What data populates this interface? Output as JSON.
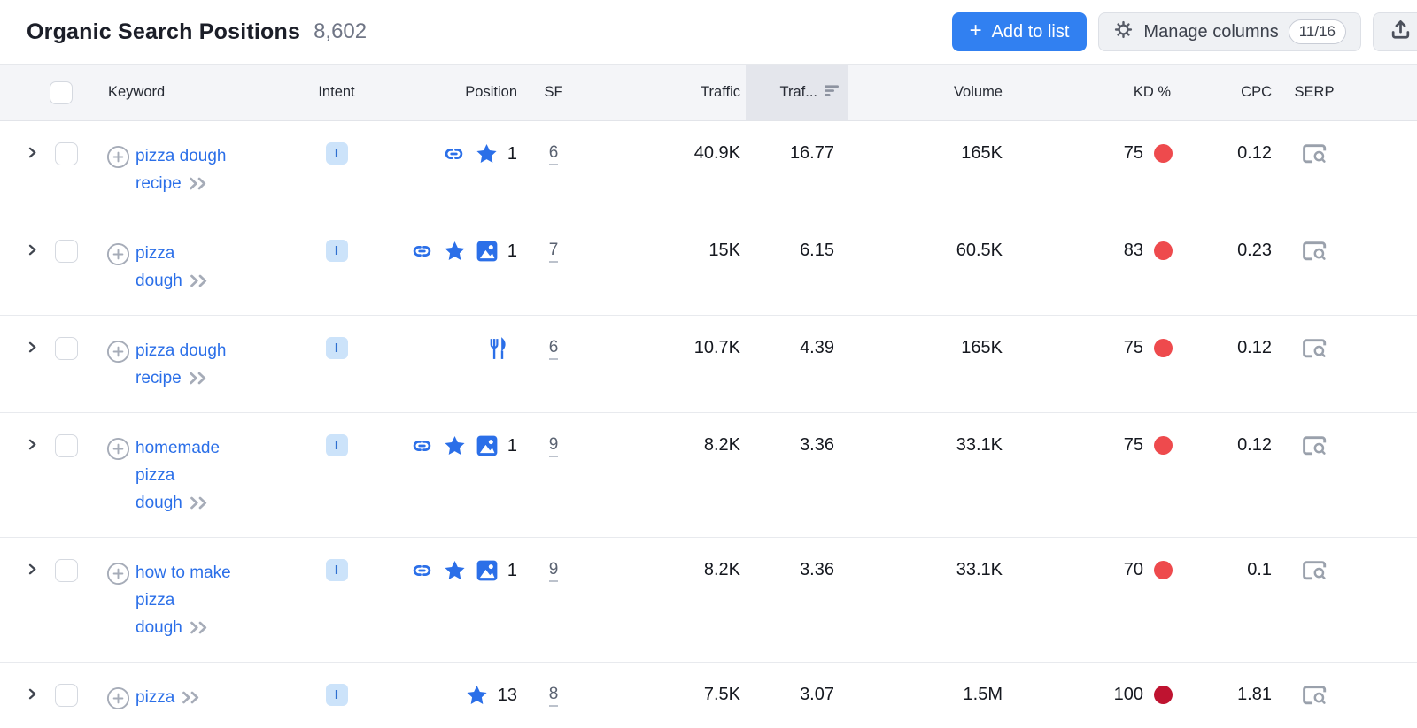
{
  "header": {
    "title": "Organic Search Positions",
    "count": "8,602",
    "add_to_list_label": "Add to list",
    "add_to_list_plus": "+",
    "manage_columns_label": "Manage columns",
    "manage_columns_badge": "11/16"
  },
  "colors": {
    "accent_blue": "#2b6fe8",
    "primary_button_blue": "#3180f1",
    "intent_badge_bg": "#cce3fa",
    "intent_badge_fg": "#2e6fd0",
    "kd_red": "#ee4a4d",
    "kd_dark_red": "#bf1330",
    "sorted_header_bg": "#e4e6ec"
  },
  "table": {
    "columns": {
      "keyword": "Keyword",
      "intent": "Intent",
      "position": "Position",
      "sf": "SF",
      "traffic": "Traffic",
      "traffic_pct": "Traf...",
      "volume": "Volume",
      "kd": "KD %",
      "cpc": "CPC",
      "serp": "SERP"
    },
    "sorted_column": "traffic_pct",
    "sort_direction": "desc",
    "rows": [
      {
        "keyword": "pizza dough\nrecipe",
        "intent": "I",
        "position_icons": [
          "link",
          "star"
        ],
        "position": "1",
        "sf": "6",
        "traffic": "40.9K",
        "traffic_pct": "16.77",
        "volume": "165K",
        "kd": "75",
        "kd_color": "#ee4a4d",
        "cpc": "0.12"
      },
      {
        "keyword": "pizza\ndough",
        "intent": "I",
        "position_icons": [
          "link",
          "star",
          "image"
        ],
        "position": "1",
        "sf": "7",
        "traffic": "15K",
        "traffic_pct": "6.15",
        "volume": "60.5K",
        "kd": "83",
        "kd_color": "#ee4a4d",
        "cpc": "0.23"
      },
      {
        "keyword": "pizza dough\nrecipe",
        "intent": "I",
        "position_icons": [
          "fork"
        ],
        "position": "",
        "sf": "6",
        "traffic": "10.7K",
        "traffic_pct": "4.39",
        "volume": "165K",
        "kd": "75",
        "kd_color": "#ee4a4d",
        "cpc": "0.12"
      },
      {
        "keyword": "homemade\npizza\ndough",
        "intent": "I",
        "position_icons": [
          "link",
          "star",
          "image"
        ],
        "position": "1",
        "sf": "9",
        "traffic": "8.2K",
        "traffic_pct": "3.36",
        "volume": "33.1K",
        "kd": "75",
        "kd_color": "#ee4a4d",
        "cpc": "0.12"
      },
      {
        "keyword": "how to make\npizza\ndough",
        "intent": "I",
        "position_icons": [
          "link",
          "star",
          "image"
        ],
        "position": "1",
        "sf": "9",
        "traffic": "8.2K",
        "traffic_pct": "3.36",
        "volume": "33.1K",
        "kd": "70",
        "kd_color": "#ee4a4d",
        "cpc": "0.1"
      },
      {
        "keyword": "pizza",
        "intent": "I",
        "position_icons": [
          "star"
        ],
        "position": "13",
        "sf": "8",
        "traffic": "7.5K",
        "traffic_pct": "3.07",
        "volume": "1.5M",
        "kd": "100",
        "kd_color": "#bf1330",
        "cpc": "1.81"
      }
    ]
  }
}
